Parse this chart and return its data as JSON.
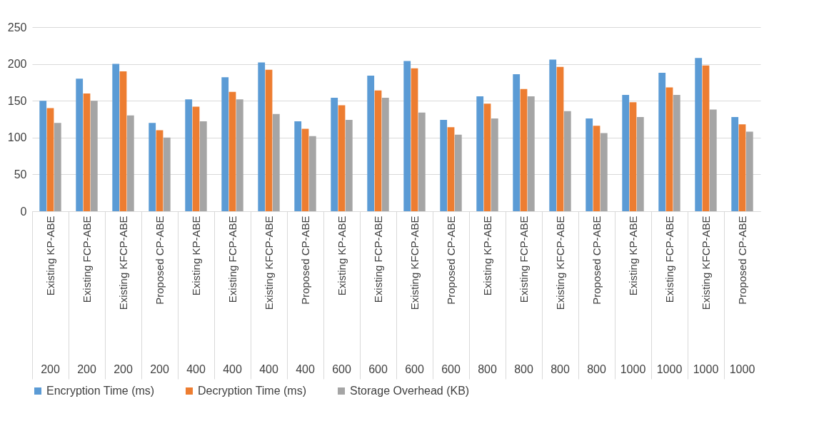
{
  "chart_data": {
    "type": "bar",
    "categories": [
      "Existing KP-ABE",
      "Existing FCP-ABE",
      "Existing KFCP-ABE",
      "Proposed CP-ABE",
      "Existing KP-ABE",
      "Existing FCP-ABE",
      "Existing KFCP-ABE",
      "Proposed CP-ABE",
      "Existing KP-ABE",
      "Existing FCP-ABE",
      "Existing KFCP-ABE",
      "Proposed CP-ABE",
      "Existing KP-ABE",
      "Existing FCP-ABE",
      "Existing KFCP-ABE",
      "Proposed CP-ABE",
      "Existing KP-ABE",
      "Existing FCP-ABE",
      "Existing KFCP-ABE",
      "Proposed CP-ABE"
    ],
    "annotations": [
      "200",
      "200",
      "200",
      "200",
      "400",
      "400",
      "400",
      "400",
      "600",
      "600",
      "600",
      "600",
      "800",
      "800",
      "800",
      "800",
      "1000",
      "1000",
      "1000",
      "1000"
    ],
    "series": [
      {
        "name": "Encryption Time (ms)",
        "color": "#5b9bd5",
        "values": [
          150,
          180,
          200,
          120,
          152,
          182,
          202,
          122,
          154,
          184,
          204,
          124,
          156,
          186,
          206,
          126,
          158,
          188,
          208,
          128
        ]
      },
      {
        "name": "Decryption Time (ms)",
        "color": "#ed7d31",
        "values": [
          140,
          160,
          190,
          110,
          142,
          162,
          192,
          112,
          144,
          164,
          194,
          114,
          146,
          166,
          196,
          116,
          148,
          168,
          198,
          118
        ]
      },
      {
        "name": "Storage Overhead (KB)",
        "color": "#a5a5a5",
        "values": [
          120,
          150,
          130,
          100,
          122,
          152,
          132,
          102,
          124,
          154,
          134,
          104,
          126,
          156,
          136,
          106,
          128,
          158,
          138,
          108
        ]
      }
    ],
    "ylim": [
      0,
      250
    ],
    "yticks": [
      0,
      50,
      100,
      150,
      200,
      250
    ],
    "grid": "y",
    "legend": "bottom"
  }
}
